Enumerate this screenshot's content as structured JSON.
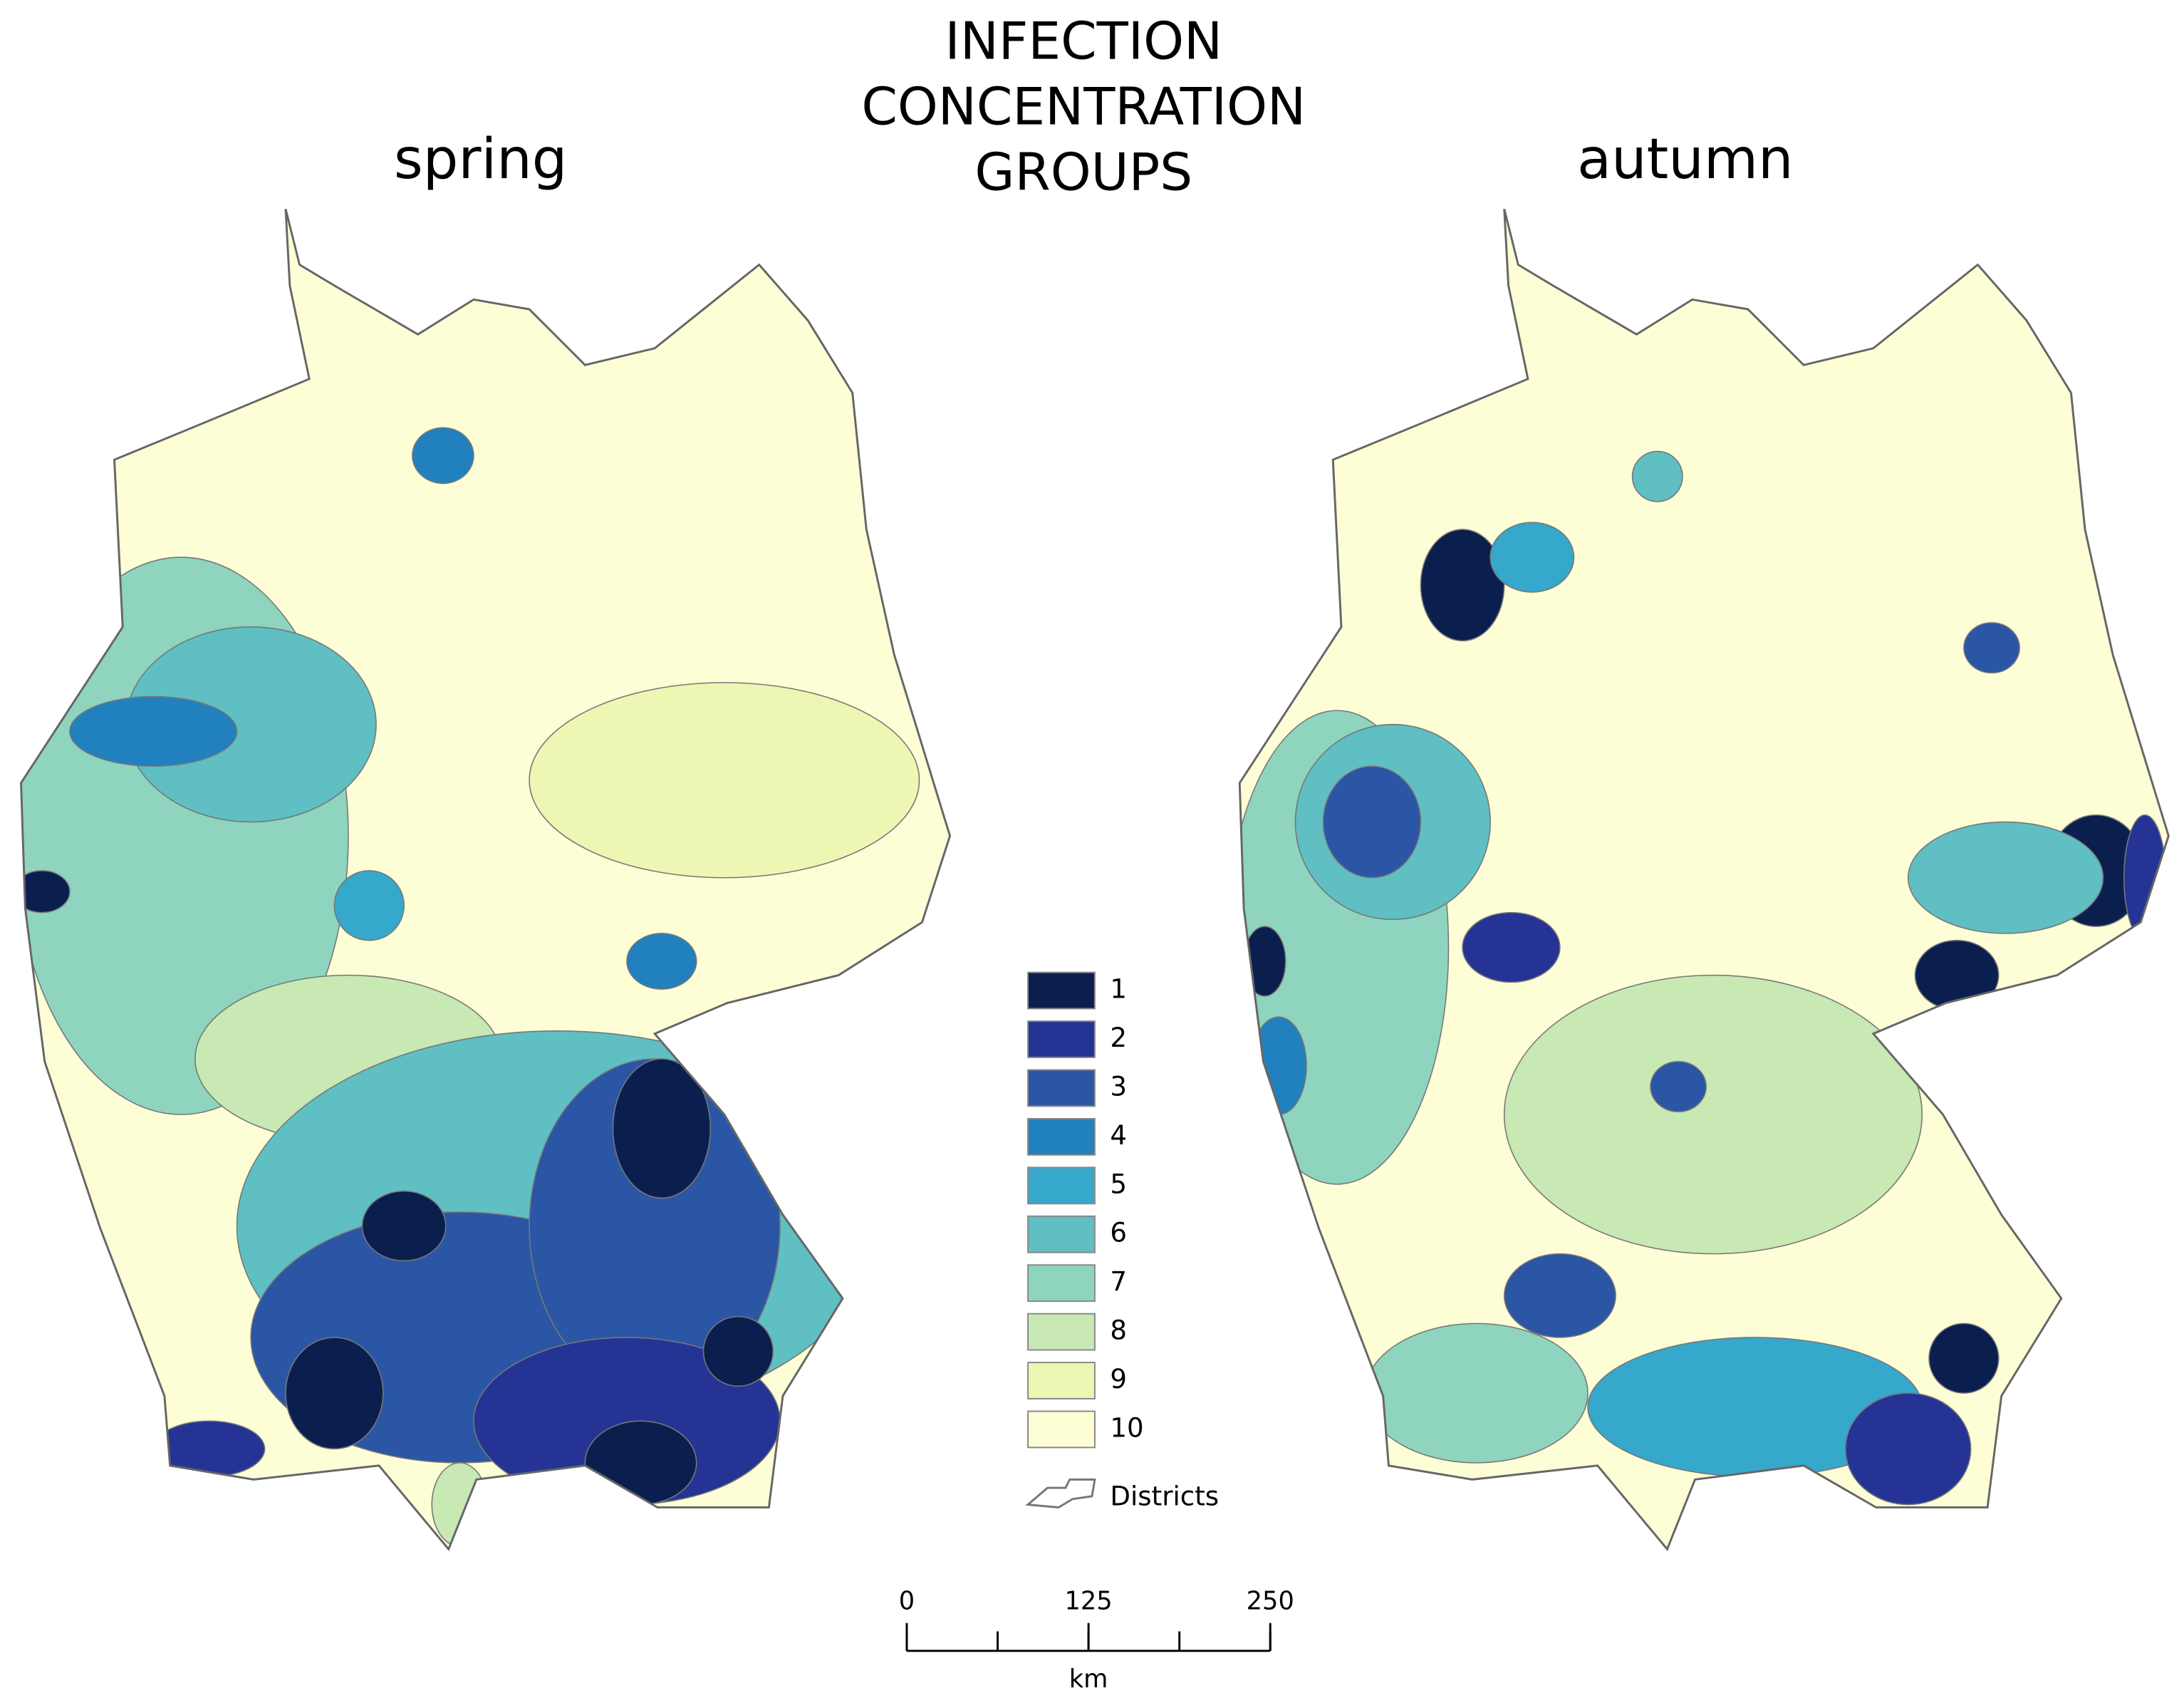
{
  "title_lines": [
    "INFECTION",
    "CONCENTRATION",
    "GROUPS"
  ],
  "maps": [
    {
      "label": "spring"
    },
    {
      "label": "autumn"
    }
  ],
  "legend": {
    "items": [
      {
        "label": "1",
        "color": "#0b1f4f"
      },
      {
        "label": "2",
        "color": "#253494"
      },
      {
        "label": "3",
        "color": "#2b56a6"
      },
      {
        "label": "4",
        "color": "#2181be"
      },
      {
        "label": "5",
        "color": "#35a8cb"
      },
      {
        "label": "6",
        "color": "#5fbfc2"
      },
      {
        "label": "7",
        "color": "#8ed4be"
      },
      {
        "label": "8",
        "color": "#c8e8b4"
      },
      {
        "label": "9",
        "color": "#eef6b3"
      },
      {
        "label": "10",
        "color": "#fdfdd6"
      }
    ],
    "boundary_label": "Districts"
  },
  "scale_bar": {
    "ticks": [
      0,
      125,
      250
    ],
    "unit": "km"
  }
}
